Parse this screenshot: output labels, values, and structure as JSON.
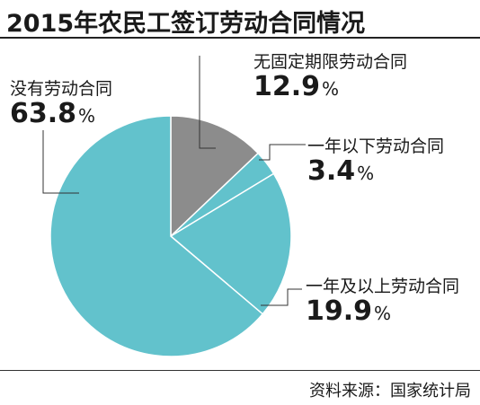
{
  "title": "2015年农民工签订劳动合同情况",
  "source": "资料来源：国家统计局",
  "colors": {
    "gray": "#8c8c8c",
    "teal": "#62c2cc",
    "stroke": "#ffffff",
    "leader": "#333333"
  },
  "chart_data": {
    "type": "pie",
    "title": "2015年农民工签订劳动合同情况",
    "unit": "%",
    "slices": [
      {
        "name": "无固定期限劳动合同",
        "value": 12.9,
        "value_label": "12.9",
        "color": "#8c8c8c"
      },
      {
        "name": "一年以下劳动合同",
        "value": 3.4,
        "value_label": "3.4",
        "color": "#62c2cc"
      },
      {
        "name": "一年及以上劳动合同",
        "value": 19.9,
        "value_label": "19.9",
        "color": "#62c2cc"
      },
      {
        "name": "没有劳动合同",
        "value": 63.8,
        "value_label": "63.8",
        "color": "#62c2cc"
      }
    ],
    "start_angle": "12 o'clock",
    "direction": "clockwise",
    "legend": "none"
  }
}
